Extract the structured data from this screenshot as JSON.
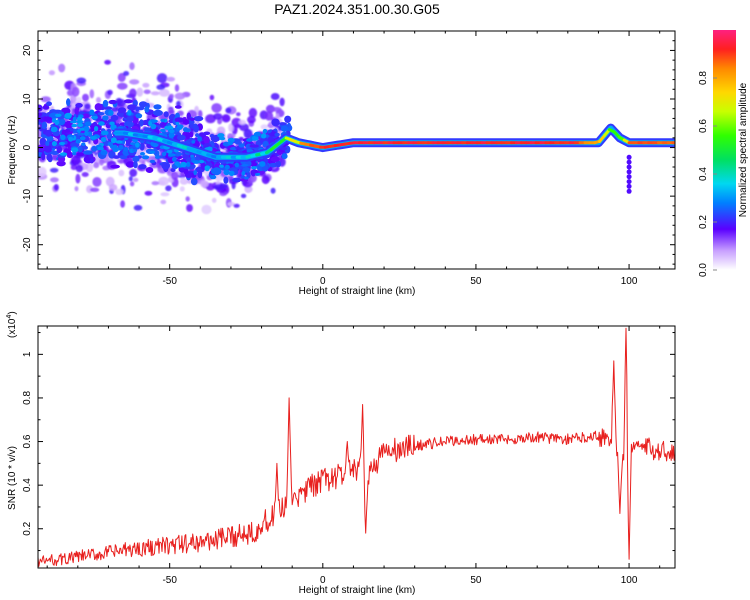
{
  "title": "PAZ1.2024.351.00.30.G05",
  "colors": {
    "snr_line": "#e8201e",
    "frame": "#000000"
  },
  "spectrogram": {
    "chart_data": {
      "type": "heatmap",
      "xlabel": "Height of straight line (km)",
      "ylabel": "Frequency (Hz)",
      "xlim": [
        -93,
        115
      ],
      "ylim": [
        -25,
        24
      ],
      "x_ticks": [
        -50,
        0,
        50,
        100
      ],
      "y_ticks": [
        -20,
        -10,
        0,
        10,
        20
      ],
      "x_tick_labels": [
        "-50",
        "0",
        "50",
        "100"
      ],
      "y_tick_labels": [
        "-20",
        "-10",
        "0",
        "10",
        "20"
      ],
      "colorbar": {
        "label": "Normalized spectral amplitude",
        "range": [
          0,
          1
        ],
        "ticks": [
          0,
          0.2,
          0.4,
          0.6,
          0.8
        ],
        "tick_labels": [
          "0.0",
          "0.2",
          "0.4",
          "0.6",
          "0.8"
        ]
      },
      "ridge": {
        "x": [
          -65,
          -55,
          -45,
          -35,
          -25,
          -18,
          -12,
          -8,
          0,
          10,
          20,
          50,
          80,
          90,
          94,
          97,
          100,
          115
        ],
        "freq": [
          3,
          2,
          0,
          -2,
          -2,
          -1,
          2,
          1,
          0,
          1,
          1,
          1,
          1,
          1,
          4,
          2,
          1,
          1
        ],
        "amplitude": [
          0.35,
          0.35,
          0.4,
          0.35,
          0.4,
          0.5,
          0.65,
          0.85,
          0.95,
          0.95,
          0.95,
          0.95,
          0.95,
          0.8,
          0.55,
          0.6,
          0.9,
          0.9
        ]
      }
    }
  },
  "snr": {
    "chart_data": {
      "type": "line",
      "xlabel": "Height of straight line (km)",
      "ylabel": "SNR (10 * v/v)",
      "scale_label": "(x10",
      "scale_exp": "4",
      "scale_close": ")",
      "xlim": [
        -93,
        115
      ],
      "ylim": [
        0.02,
        1.13
      ],
      "x_ticks": [
        -50,
        0,
        50,
        100
      ],
      "y_ticks": [
        0.2,
        0.4,
        0.6,
        0.8,
        1.0
      ],
      "x_tick_labels": [
        "-50",
        "0",
        "50",
        "100"
      ],
      "y_tick_labels": [
        "0.2",
        "0.4",
        "0.6",
        "0.8",
        "1"
      ],
      "trend": {
        "x": [
          -93,
          -85,
          -75,
          -60,
          -45,
          -30,
          -22,
          -15,
          -12,
          -8,
          -5,
          0,
          5,
          10,
          15,
          20,
          25,
          30,
          40,
          50,
          60,
          70,
          80,
          90,
          95,
          98,
          100,
          105,
          115
        ],
        "y": [
          0.05,
          0.06,
          0.08,
          0.11,
          0.13,
          0.16,
          0.2,
          0.26,
          0.3,
          0.34,
          0.38,
          0.42,
          0.44,
          0.46,
          0.46,
          0.55,
          0.56,
          0.58,
          0.6,
          0.61,
          0.61,
          0.62,
          0.61,
          0.63,
          0.6,
          0.5,
          0.6,
          0.57,
          0.55
        ]
      },
      "spikes": [
        {
          "x": -15,
          "y": 0.5
        },
        {
          "x": -11,
          "y": 0.8
        },
        {
          "x": -9,
          "y": 0.36
        },
        {
          "x": 13,
          "y": 0.77
        },
        {
          "x": 14,
          "y": 0.18
        },
        {
          "x": 8,
          "y": 0.6
        },
        {
          "x": 95,
          "y": 0.97
        },
        {
          "x": 97,
          "y": 0.27
        },
        {
          "x": 99,
          "y": 1.12
        },
        {
          "x": 100,
          "y": 0.06
        }
      ]
    }
  }
}
